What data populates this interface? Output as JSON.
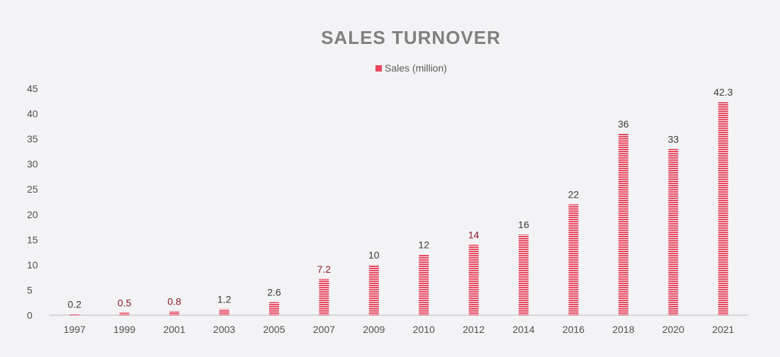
{
  "chart_data": {
    "type": "bar",
    "title": "SALES TURNOVER",
    "categories": [
      "1997",
      "1999",
      "2001",
      "2003",
      "2005",
      "2007",
      "2009",
      "2010",
      "2012",
      "2014",
      "2016",
      "2018",
      "2020",
      "2021"
    ],
    "series": [
      {
        "name": "Sales (million)",
        "values": [
          0.2,
          0.5,
          0.8,
          1.2,
          2.6,
          7.2,
          10,
          12,
          14,
          16,
          22,
          36,
          33,
          42.3
        ]
      }
    ],
    "data_labels": [
      "0.2",
      "0.5",
      "0.8",
      "1.2",
      "2.6",
      "7.2",
      "10",
      "12",
      "14",
      "16",
      "22",
      "36",
      "33",
      "42.3"
    ],
    "yticks": [
      "0",
      "5",
      "10",
      "15",
      "20",
      "25",
      "30",
      "35",
      "40",
      "45"
    ],
    "ylim": [
      0,
      45
    ],
    "xlabel": "",
    "ylabel": "",
    "grid": false,
    "legend_position": "top-center",
    "bar_color": "#e8475f",
    "label_colors": [
      "#3a3a3a",
      "#8b1a2b",
      "#8b1a2b",
      "#3a3a3a",
      "#3a3a3a",
      "#8b1a2b",
      "#3a3a3a",
      "#3a3a3a",
      "#8b1a2b",
      "#3a3a3a",
      "#3a3a3a",
      "#3a3a3a",
      "#3a3a3a",
      "#3a3a3a"
    ]
  }
}
